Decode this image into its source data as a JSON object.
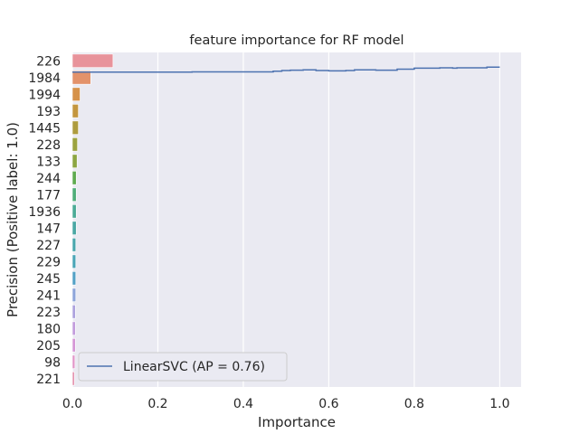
{
  "chart_data": {
    "type": "bar",
    "orientation": "horizontal",
    "title": "feature importance for RF model",
    "xlabel": "Importance",
    "ylabel": "Precision (Positive label: 1.0)",
    "xlim": [
      0.0,
      1.05
    ],
    "x_ticks": [
      0.0,
      0.2,
      0.4,
      0.6,
      0.8,
      1.0
    ],
    "x_tick_labels": [
      "0.0",
      "0.2",
      "0.4",
      "0.6",
      "0.8",
      "1.0"
    ],
    "grid": true,
    "categories": [
      "226",
      "1984",
      "1994",
      "193",
      "1445",
      "228",
      "133",
      "244",
      "177",
      "1936",
      "147",
      "227",
      "229",
      "245",
      "241",
      "223",
      "180",
      "205",
      "98",
      "221"
    ],
    "values": [
      0.095,
      0.043,
      0.018,
      0.014,
      0.014,
      0.012,
      0.011,
      0.009,
      0.009,
      0.009,
      0.009,
      0.008,
      0.008,
      0.008,
      0.008,
      0.007,
      0.007,
      0.007,
      0.006,
      0.005
    ],
    "bar_colors": [
      "#e8939b",
      "#e3926a",
      "#d6924a",
      "#c4963f",
      "#ae9c3f",
      "#9ca33f",
      "#8ca642",
      "#5eab4f",
      "#4fae79",
      "#4bab96",
      "#4aa7a4",
      "#4aa7ad",
      "#4ba5b7",
      "#53a1c6",
      "#8ea5da",
      "#ada2de",
      "#c39ddd",
      "#d597d6",
      "#e195c8",
      "#e596b1"
    ],
    "overlay_line": {
      "name": "LinearSVC (AP = 0.76)",
      "color": "#4c72b0",
      "points": [
        [
          0.0,
          0.941
        ],
        [
          0.28,
          0.941
        ],
        [
          0.28,
          0.942
        ],
        [
          0.47,
          0.942
        ],
        [
          0.47,
          0.944
        ],
        [
          0.49,
          0.944
        ],
        [
          0.49,
          0.946
        ],
        [
          0.51,
          0.946
        ],
        [
          0.51,
          0.947
        ],
        [
          0.54,
          0.947
        ],
        [
          0.54,
          0.948
        ],
        [
          0.57,
          0.948
        ],
        [
          0.57,
          0.946
        ],
        [
          0.6,
          0.946
        ],
        [
          0.6,
          0.945
        ],
        [
          0.64,
          0.945
        ],
        [
          0.64,
          0.946
        ],
        [
          0.66,
          0.946
        ],
        [
          0.66,
          0.948
        ],
        [
          0.71,
          0.948
        ],
        [
          0.71,
          0.947
        ],
        [
          0.76,
          0.947
        ],
        [
          0.76,
          0.95
        ],
        [
          0.8,
          0.95
        ],
        [
          0.8,
          0.953
        ],
        [
          0.86,
          0.953
        ],
        [
          0.86,
          0.954
        ],
        [
          0.89,
          0.954
        ],
        [
          0.89,
          0.953
        ],
        [
          0.9,
          0.953
        ],
        [
          0.9,
          0.954
        ],
        [
          0.97,
          0.954
        ],
        [
          0.97,
          0.956
        ],
        [
          1.0,
          0.956
        ]
      ]
    },
    "legend": {
      "entries": [
        "LinearSVC (AP = 0.76)"
      ],
      "placement": "lower-left"
    }
  }
}
